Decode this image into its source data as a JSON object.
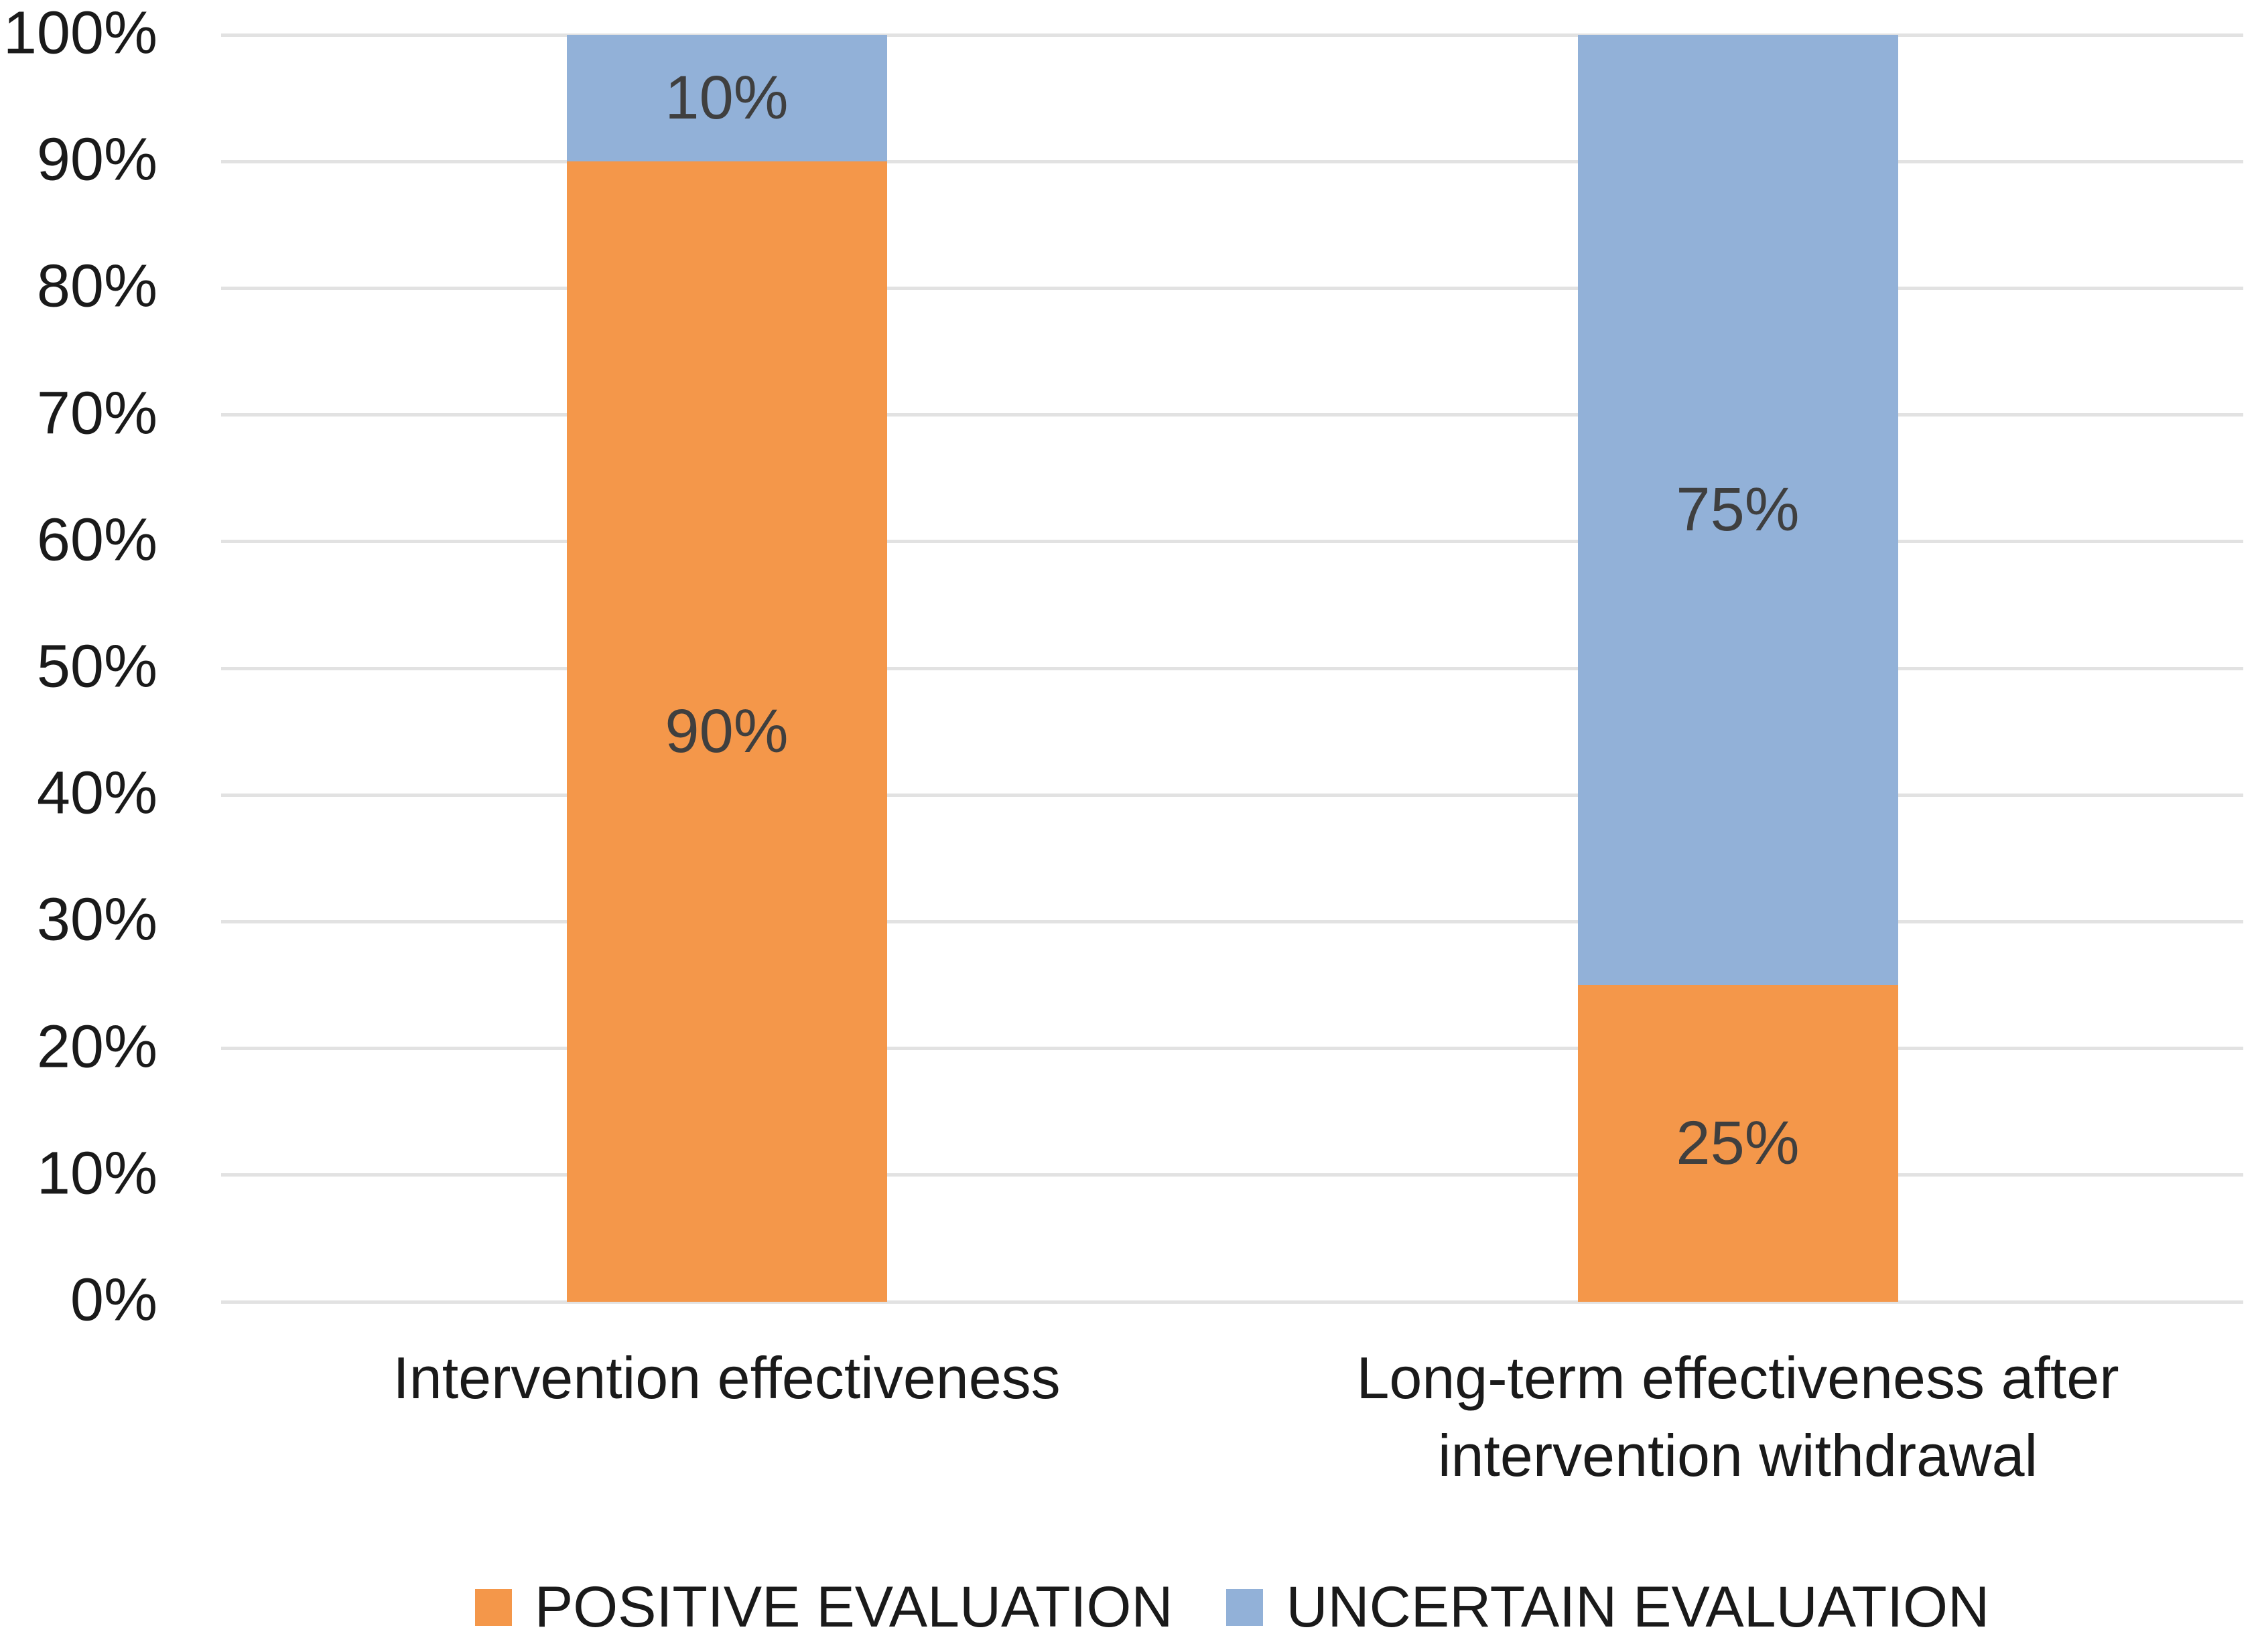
{
  "chart_data": {
    "type": "bar",
    "stacked": true,
    "title": "",
    "xlabel": "",
    "ylabel": "",
    "categories": [
      "Intervention effectiveness",
      "Long-term effectiveness after intervention withdrawal"
    ],
    "series": [
      {
        "name": "POSITIVE EVALUATION",
        "color": "#F4974A",
        "values": [
          90,
          25
        ],
        "labels": [
          "90%",
          "25%"
        ]
      },
      {
        "name": "UNCERTAIN EVALUATION",
        "color": "#92B1D8",
        "values": [
          10,
          75
        ],
        "labels": [
          "10%",
          "75%"
        ]
      }
    ],
    "y_ticks": [
      "100%",
      "90%",
      "80%",
      "70%",
      "60%",
      "50%",
      "40%",
      "30%",
      "20%",
      "10%",
      "0%"
    ],
    "ylim": [
      0,
      100
    ],
    "grid": true,
    "legend_position": "bottom"
  },
  "colors": {
    "positive": "#F4974A",
    "uncertain": "#92B1D8",
    "gridline": "#E2E2E2",
    "value_label": "#3F3F3F",
    "axis_text": "#1A1A1A",
    "background": "#FFFFFF"
  }
}
